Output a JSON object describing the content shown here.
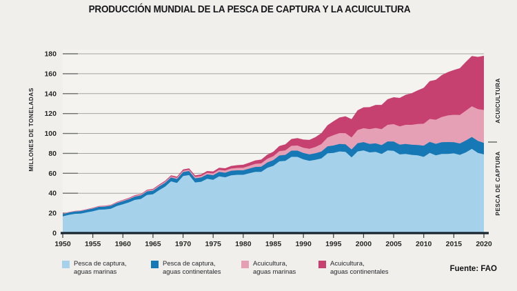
{
  "title": "PRODUCCIÓN MUNDIAL DE LA PESCA DE CAPTURA Y LA ACUICULTURA",
  "y_axis_title": "MILLONES DE TONELADAS",
  "right_labels": {
    "top": "ACUICULTURA",
    "bottom": "PESCA DE CAPTURA"
  },
  "source": "Fuente: FAO",
  "colors": {
    "background": "#f1efec",
    "plot_background": "#f4f3f0",
    "gridline": "#a5a3a0",
    "gridline_tick": "#6f6f6c",
    "axis_line": "#18242e",
    "text": "#232325"
  },
  "legend": [
    {
      "line1": "Pesca de captura,",
      "line2": "aguas marinas"
    },
    {
      "line1": "Pesca de captura,",
      "line2": "aguas continentales"
    },
    {
      "line1": "Acuicultura,",
      "line2": "aguas marinas"
    },
    {
      "line1": "Acuicultura,",
      "line2": "aguas continentales"
    }
  ],
  "chart_data": {
    "type": "area",
    "stacked": true,
    "title": "PRODUCCIÓN MUNDIAL DE LA PESCA DE CAPTURA Y LA ACUICULTURA",
    "ylabel": "MILLONES DE TONELADAS",
    "ylim": [
      0,
      180
    ],
    "yticks": [
      0,
      20,
      40,
      60,
      80,
      100,
      120,
      140,
      160,
      180
    ],
    "xticks": [
      1950,
      1955,
      1960,
      1965,
      1970,
      1975,
      1980,
      1985,
      1990,
      1995,
      2000,
      2005,
      2010,
      2015,
      2020
    ],
    "grid": "horizontal",
    "legend_position": "bottom",
    "x": [
      1950,
      1951,
      1952,
      1953,
      1954,
      1955,
      1956,
      1957,
      1958,
      1959,
      1960,
      1961,
      1962,
      1963,
      1964,
      1965,
      1966,
      1967,
      1968,
      1969,
      1970,
      1971,
      1972,
      1973,
      1974,
      1975,
      1976,
      1977,
      1978,
      1979,
      1980,
      1981,
      1982,
      1983,
      1984,
      1985,
      1986,
      1987,
      1988,
      1989,
      1990,
      1991,
      1992,
      1993,
      1994,
      1995,
      1996,
      1997,
      1998,
      1999,
      2000,
      2001,
      2002,
      2003,
      2004,
      2005,
      2006,
      2007,
      2008,
      2009,
      2010,
      2011,
      2012,
      2013,
      2014,
      2015,
      2016,
      2017,
      2018,
      2019,
      2020
    ],
    "series": [
      {
        "name": "Pesca de captura, aguas marinas",
        "color": "#a5d2ea",
        "values": [
          16.8,
          18.3,
          19.3,
          19.6,
          20.8,
          21.9,
          23.5,
          23.7,
          24.4,
          27.2,
          28.9,
          30.8,
          33.3,
          34.3,
          38.2,
          38.9,
          43.0,
          46.5,
          51.9,
          50.3,
          57.3,
          58.2,
          50.8,
          51.5,
          54.5,
          53.5,
          57.0,
          56.0,
          58.0,
          58.5,
          58.5,
          60.0,
          61.5,
          61.5,
          65.5,
          67.5,
          72.0,
          72.5,
          76.5,
          76.5,
          74.0,
          72.5,
          73.5,
          75.0,
          80.0,
          80.5,
          82.0,
          81.5,
          76.0,
          82.0,
          83.0,
          81.0,
          81.5,
          79.5,
          83.0,
          82.5,
          79.0,
          79.5,
          78.5,
          78.0,
          76.5,
          80.5,
          78.0,
          79.5,
          79.5,
          80.0,
          78.5,
          81.0,
          84.5,
          80.5,
          79.0
        ]
      },
      {
        "name": "Pesca de captura, aguas continentales",
        "color": "#1678b4",
        "values": [
          2.2,
          2.3,
          2.4,
          2.5,
          2.6,
          2.7,
          2.8,
          2.9,
          3.0,
          3.0,
          3.1,
          3.2,
          3.3,
          3.5,
          3.6,
          3.7,
          3.8,
          3.9,
          3.9,
          4.0,
          4.0,
          4.1,
          4.2,
          4.3,
          4.4,
          4.6,
          4.5,
          4.6,
          4.6,
          4.5,
          4.5,
          4.7,
          4.9,
          5.1,
          5.4,
          5.7,
          5.9,
          6.0,
          6.2,
          6.3,
          6.4,
          6.5,
          6.6,
          6.8,
          7.0,
          7.4,
          7.5,
          7.6,
          8.0,
          8.2,
          8.3,
          8.5,
          8.6,
          8.8,
          9.0,
          9.4,
          9.8,
          10.0,
          10.2,
          10.5,
          11.3,
          11.1,
          11.6,
          11.7,
          11.9,
          11.2,
          11.4,
          11.9,
          12.0,
          12.0,
          11.5
        ]
      },
      {
        "name": "Acuicultura, aguas marinas",
        "color": "#e6a0b6",
        "values": [
          0.3,
          0.3,
          0.35,
          0.4,
          0.45,
          0.5,
          0.5,
          0.55,
          0.6,
          0.7,
          0.8,
          0.8,
          0.85,
          0.9,
          0.95,
          1.0,
          1.0,
          1.1,
          1.1,
          1.15,
          1.2,
          1.3,
          1.4,
          1.5,
          1.6,
          1.8,
          1.9,
          2.1,
          2.2,
          2.4,
          2.6,
          2.8,
          3.1,
          3.4,
          3.7,
          4.0,
          4.3,
          4.6,
          4.9,
          5.1,
          5.3,
          5.7,
          6.4,
          7.6,
          8.9,
          10.4,
          10.9,
          11.2,
          12.0,
          13.2,
          14.0,
          14.8,
          15.4,
          16.0,
          16.7,
          17.5,
          18.3,
          19.2,
          20.0,
          21.0,
          22.0,
          23.0,
          24.2,
          25.4,
          26.7,
          27.5,
          28.6,
          30.0,
          30.8,
          31.9,
          33.1
        ]
      },
      {
        "name": "Acuicultura, aguas continentales",
        "color": "#c64170",
        "values": [
          0.2,
          0.2,
          0.2,
          0.25,
          0.25,
          0.3,
          0.35,
          0.4,
          0.4,
          0.45,
          0.5,
          0.55,
          0.6,
          0.65,
          0.75,
          0.8,
          0.9,
          1.0,
          1.1,
          1.2,
          1.3,
          1.4,
          1.5,
          1.6,
          1.8,
          2.0,
          2.2,
          2.4,
          2.6,
          2.8,
          3.0,
          3.2,
          3.5,
          3.8,
          4.1,
          4.5,
          5.2,
          6.0,
          6.8,
          7.5,
          8.2,
          8.8,
          9.8,
          11.0,
          12.4,
          14.0,
          15.6,
          17.0,
          18.4,
          19.8,
          21.0,
          22.1,
          23.2,
          24.4,
          25.7,
          27.0,
          28.6,
          30.1,
          31.8,
          33.8,
          36.0,
          38.0,
          40.0,
          42.0,
          43.5,
          45.0,
          47.0,
          49.0,
          50.5,
          52.5,
          54.4
        ]
      }
    ]
  }
}
